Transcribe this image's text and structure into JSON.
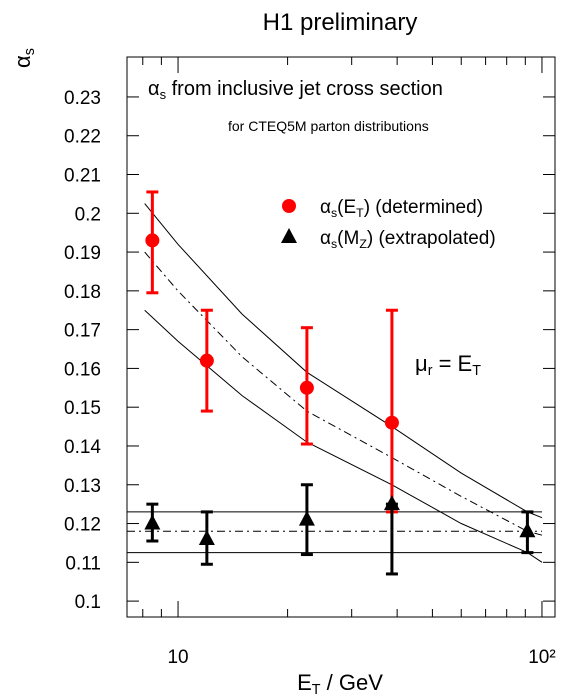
{
  "chart_data": {
    "type": "errorbar",
    "title": "H1 preliminary",
    "y_label": [
      {
        "text": "α"
      },
      {
        "text": "s",
        "sub": true
      }
    ],
    "x_label": [
      {
        "text": "E"
      },
      {
        "text": "T",
        "sub": true
      },
      {
        "text": "  / GeV"
      }
    ],
    "annotations": [
      [
        {
          "text": "α"
        },
        {
          "text": "s",
          "sub": true
        },
        {
          "text": " from inclusive jet cross section"
        }
      ],
      [
        {
          "text": "for CTEQ5M parton distributions"
        }
      ],
      [
        {
          "text": "μ"
        },
        {
          "text": "r",
          "sub": true
        },
        {
          "text": " = E"
        },
        {
          "text": "T",
          "sub": true
        }
      ]
    ],
    "xscale": "log",
    "xlim": [
      7.24,
      108.6
    ],
    "ylim": [
      0.0959,
      0.2403
    ],
    "xticks": [
      10,
      {
        "value": 100,
        "label": "10²"
      }
    ],
    "xminor_ticks": [
      8,
      9,
      20,
      30,
      40,
      50,
      60,
      70,
      80,
      90
    ],
    "yticks": [
      0.1,
      0.11,
      0.12,
      0.13,
      0.14,
      0.15,
      0.16,
      0.17,
      0.18,
      0.19,
      0.2,
      0.21,
      0.22,
      0.23
    ],
    "series": [
      {
        "name": [
          {
            "text": "α"
          },
          {
            "text": "s",
            "sub": true
          },
          {
            "text": "(E"
          },
          {
            "text": "T",
            "sub": true
          },
          {
            "text": ")   (determined)"
          }
        ],
        "color": "#ff0000",
        "marker": "circle",
        "x": [
          8.5,
          12.0,
          22.6,
          38.7
        ],
        "values": [
          0.193,
          0.162,
          0.155,
          0.146
        ],
        "lower": [
          0.1795,
          0.149,
          0.1405,
          0.123
        ],
        "upper": [
          0.2055,
          0.175,
          0.1705,
          0.175
        ]
      },
      {
        "name": [
          {
            "text": "α"
          },
          {
            "text": "s",
            "sub": true
          },
          {
            "text": "(M"
          },
          {
            "text": "Z",
            "sub": true
          },
          {
            "text": ")   (extrapolated)"
          }
        ],
        "color": "#000000",
        "marker": "triangle",
        "x": [
          8.5,
          12.0,
          22.6,
          38.7,
          91.2
        ],
        "values": [
          0.12,
          0.116,
          0.121,
          0.125,
          0.118
        ],
        "lower": [
          0.1155,
          0.1095,
          0.112,
          0.107,
          0.1125
        ],
        "upper": [
          0.125,
          0.123,
          0.13,
          0.125,
          0.123
        ]
      }
    ],
    "curves": [
      {
        "style": "solid",
        "x": [
          8.1,
          10,
          15,
          22.6,
          38.7,
          60,
          91.2,
          100
        ],
        "values": [
          0.2025,
          0.192,
          0.174,
          0.159,
          0.145,
          0.133,
          0.123,
          0.1215
        ]
      },
      {
        "style": "dashdot",
        "x": [
          8.1,
          10,
          15,
          22.6,
          38.7,
          60,
          91.2,
          100
        ],
        "values": [
          0.19,
          0.18,
          0.163,
          0.149,
          0.137,
          0.127,
          0.118,
          0.117
        ]
      },
      {
        "style": "solid",
        "x": [
          8.1,
          10,
          15,
          22.6,
          38.7,
          60,
          91.2,
          100
        ],
        "values": [
          0.175,
          0.167,
          0.153,
          0.141,
          0.13,
          0.12,
          0.1125,
          0.11
        ]
      },
      {
        "style": "solid",
        "x": [
          7.24,
          100
        ],
        "values": [
          0.123,
          0.123
        ]
      },
      {
        "style": "dashdot",
        "x": [
          7.24,
          100
        ],
        "values": [
          0.118,
          0.118
        ]
      },
      {
        "style": "solid",
        "x": [
          7.24,
          100
        ],
        "values": [
          0.1125,
          0.1125
        ]
      }
    ]
  }
}
